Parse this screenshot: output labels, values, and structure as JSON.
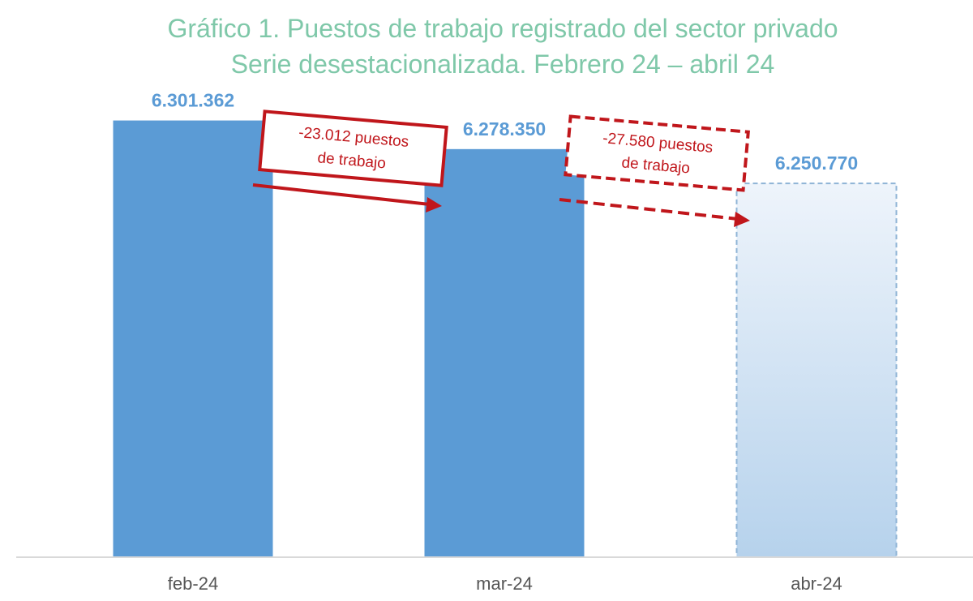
{
  "chart_data": {
    "type": "bar",
    "title": "Gráfico 1. Puestos de trabajo registrado del sector privado",
    "subtitle": "Serie desestacionalizada. Febrero 24 – abril 24",
    "categories": [
      "feb-24",
      "mar-24",
      "abr-24"
    ],
    "values": [
      6301362,
      6278350,
      6250770
    ],
    "value_labels": [
      "6.301.362",
      "6.278.350",
      "6.250.770"
    ],
    "ylim": [
      5950000,
      6320000
    ],
    "grid": false,
    "legend": "none",
    "annotations": [
      {
        "line1": "-23.012 puestos",
        "line2": "de trabajo",
        "from": "feb-24",
        "to": "mar-24",
        "style": "solid"
      },
      {
        "line1": "-27.580 puestos",
        "line2": "de trabajo",
        "from": "mar-24",
        "to": "abr-24",
        "style": "dashed"
      }
    ],
    "colors": {
      "bar": "#5b9bd5",
      "projected_bar_top": "#eef4fb",
      "projected_bar_bottom": "#b6d2ec",
      "projected_border": "#8fb4d6",
      "annotation": "#c0161b",
      "title": "#7fc8a9",
      "axis": "#d9d9d9"
    }
  }
}
